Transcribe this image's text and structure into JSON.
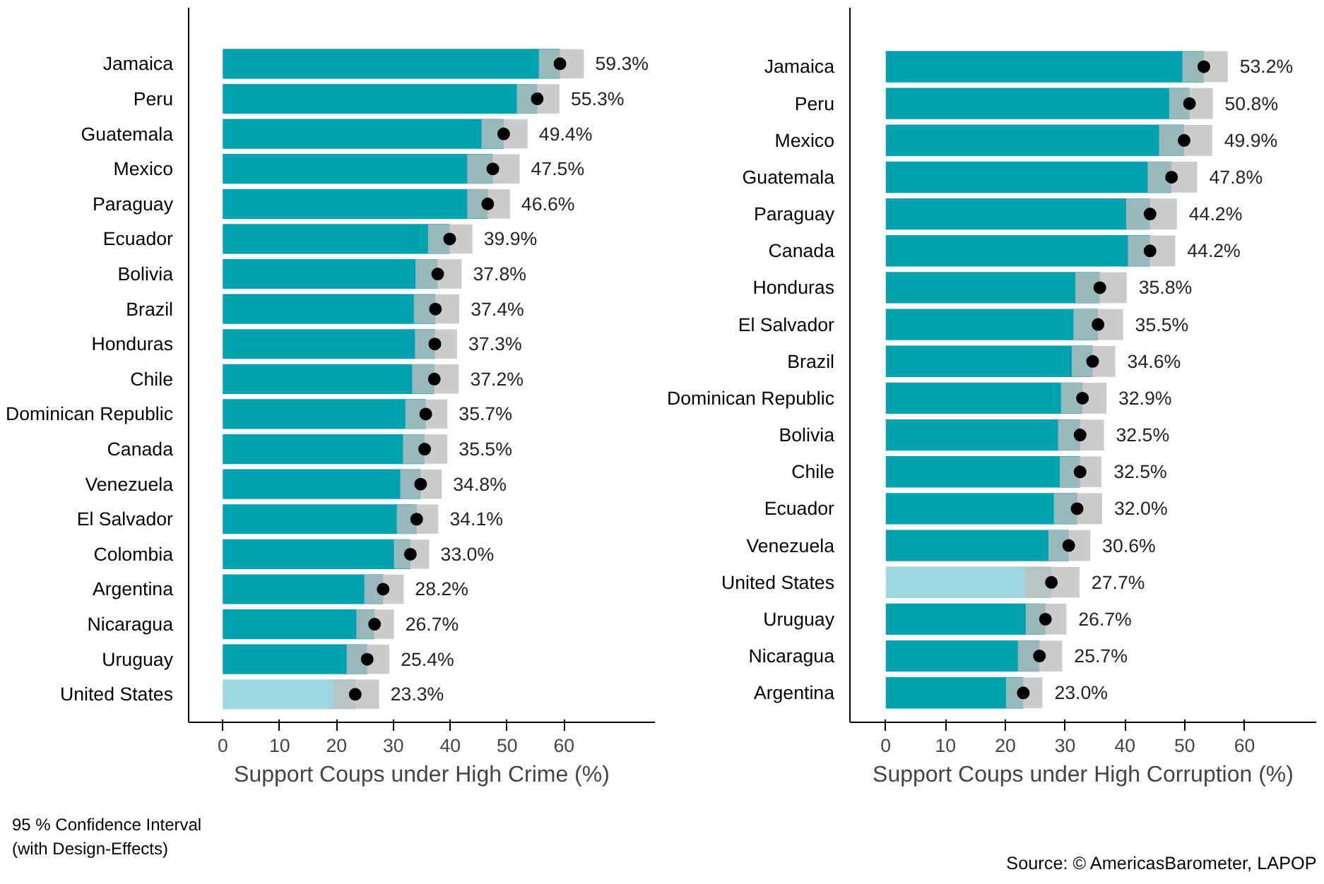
{
  "chart_data": [
    {
      "type": "bar",
      "orientation": "horizontal",
      "xlabel": "Support Coups under High Crime (%)",
      "categories": [
        "Jamaica",
        "Peru",
        "Guatemala",
        "Mexico",
        "Paraguay",
        "Ecuador",
        "Bolivia",
        "Brazil",
        "Honduras",
        "Chile",
        "Dominican Republic",
        "Canada",
        "Venezuela",
        "El Salvador",
        "Colombia",
        "Argentina",
        "Nicaragua",
        "Uruguay",
        "United States"
      ],
      "series": [
        {
          "values": [
            59.3,
            55.3,
            49.4,
            47.5,
            46.6,
            39.9,
            37.8,
            37.4,
            37.3,
            37.2,
            35.7,
            35.5,
            34.8,
            34.1,
            33.0,
            28.2,
            26.7,
            25.4,
            23.3
          ],
          "colors": [
            "#00a2b0",
            "#00a2b0",
            "#00a2b0",
            "#00a2b0",
            "#00a2b0",
            "#00a2b0",
            "#00a2b0",
            "#00a2b0",
            "#00a2b0",
            "#00a2b0",
            "#00a2b0",
            "#00a2b0",
            "#00a2b0",
            "#00a2b0",
            "#00a2b0",
            "#00a2b0",
            "#00a2b0",
            "#00a2b0",
            "#9dd7df"
          ],
          "value_labels": [
            "59.3%",
            "55.3%",
            "49.4%",
            "47.5%",
            "46.6%",
            "39.9%",
            "37.8%",
            "37.4%",
            "37.3%",
            "37.2%",
            "35.7%",
            "35.5%",
            "34.8%",
            "34.1%",
            "33.0%",
            "28.2%",
            "26.7%",
            "25.4%",
            "23.3%"
          ],
          "errors": [
            [
              55.6,
              63.5
            ],
            [
              51.7,
              59.2
            ],
            [
              45.5,
              53.6
            ],
            [
              43.0,
              52.2
            ],
            [
              43.0,
              50.5
            ],
            [
              36.1,
              43.9
            ],
            [
              33.9,
              42.0
            ],
            [
              33.6,
              41.6
            ],
            [
              33.8,
              41.2
            ],
            [
              33.3,
              41.5
            ],
            [
              32.1,
              39.5
            ],
            [
              31.7,
              39.5
            ],
            [
              31.2,
              38.5
            ],
            [
              30.6,
              37.9
            ],
            [
              30.1,
              36.3
            ],
            [
              24.9,
              31.8
            ],
            [
              23.5,
              30.1
            ],
            [
              21.8,
              29.3
            ],
            [
              19.4,
              27.5
            ]
          ]
        },
        {
          "type": "scatter",
          "marker": "circle",
          "color": "#000000",
          "values": [
            59.3,
            55.3,
            49.4,
            47.5,
            46.6,
            39.9,
            37.8,
            37.4,
            37.3,
            37.2,
            35.7,
            35.5,
            34.8,
            34.1,
            33.0,
            28.2,
            26.7,
            25.4,
            23.3
          ]
        }
      ],
      "xlim": [
        -6,
        76
      ],
      "xticks": [
        0,
        10,
        20,
        30,
        40,
        50,
        60
      ],
      "grid": false,
      "annotations": [
        "95 % Confidence Interval\n(with Design-Effects)"
      ]
    },
    {
      "type": "bar",
      "orientation": "horizontal",
      "xlabel": "Support Coups under High Corruption (%)",
      "categories": [
        "Jamaica",
        "Peru",
        "Mexico",
        "Guatemala",
        "Paraguay",
        "Canada",
        "Honduras",
        "El Salvador",
        "Brazil",
        "Dominican Republic",
        "Bolivia",
        "Chile",
        "Ecuador",
        "Venezuela",
        "United States",
        "Uruguay",
        "Nicaragua",
        "Argentina"
      ],
      "series": [
        {
          "values": [
            53.2,
            50.8,
            49.9,
            47.8,
            44.2,
            44.2,
            35.8,
            35.5,
            34.6,
            32.9,
            32.5,
            32.5,
            32.0,
            30.6,
            27.7,
            26.7,
            25.7,
            23.0
          ],
          "colors": [
            "#00a2b0",
            "#00a2b0",
            "#00a2b0",
            "#00a2b0",
            "#00a2b0",
            "#00a2b0",
            "#00a2b0",
            "#00a2b0",
            "#00a2b0",
            "#00a2b0",
            "#00a2b0",
            "#00a2b0",
            "#00a2b0",
            "#00a2b0",
            "#9dd7df",
            "#00a2b0",
            "#00a2b0",
            "#00a2b0"
          ],
          "value_labels": [
            "53.2%",
            "50.8%",
            "49.9%",
            "47.8%",
            "44.2%",
            "44.2%",
            "35.8%",
            "35.5%",
            "34.6%",
            "32.9%",
            "32.5%",
            "32.5%",
            "32.0%",
            "30.6%",
            "27.7%",
            "26.7%",
            "25.7%",
            "23.0%"
          ],
          "errors": [
            [
              49.6,
              57.2
            ],
            [
              47.4,
              54.7
            ],
            [
              45.7,
              54.6
            ],
            [
              43.8,
              52.1
            ],
            [
              40.2,
              48.7
            ],
            [
              40.5,
              48.4
            ],
            [
              31.7,
              40.3
            ],
            [
              31.4,
              39.7
            ],
            [
              31.1,
              38.4
            ],
            [
              29.3,
              36.9
            ],
            [
              28.8,
              36.5
            ],
            [
              29.1,
              36.1
            ],
            [
              28.1,
              36.2
            ],
            [
              27.2,
              34.2
            ],
            [
              23.3,
              32.4
            ],
            [
              23.4,
              30.2
            ],
            [
              22.1,
              29.5
            ],
            [
              20.1,
              26.2
            ]
          ]
        },
        {
          "type": "scatter",
          "marker": "circle",
          "color": "#000000",
          "values": [
            53.2,
            50.8,
            49.9,
            47.8,
            44.2,
            44.2,
            35.8,
            35.5,
            34.6,
            32.9,
            32.5,
            32.5,
            32.0,
            30.6,
            27.7,
            26.7,
            25.7,
            23.0
          ]
        }
      ],
      "xlim": [
        -6,
        72
      ],
      "xticks": [
        0,
        10,
        20,
        30,
        40,
        50,
        60
      ],
      "grid": false,
      "annotations": [
        "Source: © AmericasBarometer, LAPOP"
      ]
    }
  ]
}
